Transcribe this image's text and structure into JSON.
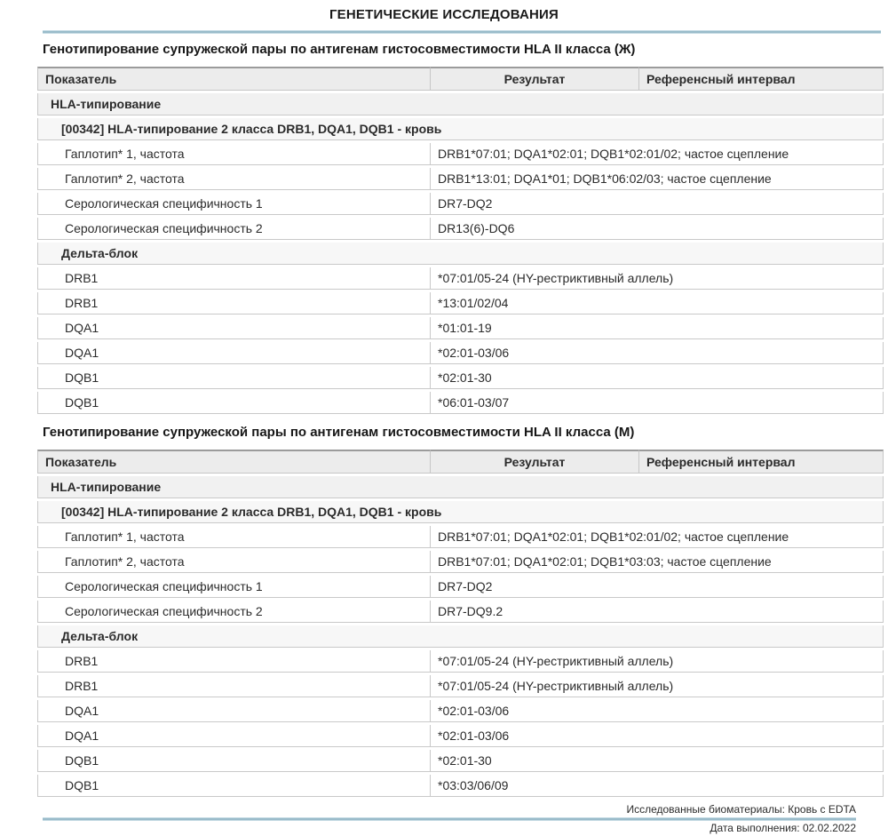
{
  "page": {
    "title": "ГЕНЕТИЧЕСКИЕ ИССЛЕДОВАНИЯ",
    "accent_color": "#7fa6b8",
    "footer": {
      "biomaterials": "Исследованные биоматериалы: Кровь с EDTA",
      "date": "Дата выполнения: 02.02.2022"
    }
  },
  "columns": [
    "Показатель",
    "Результат",
    "Референсный интервал"
  ],
  "sections": [
    {
      "heading": "Генотипирование супружеской пары по антигенам гистосовместимости HLA II класса (Ж)",
      "rows": [
        {
          "type": "group",
          "label": "HLA-типирование"
        },
        {
          "type": "subgroup",
          "label": "[00342] HLA-типирование 2 класса DRB1, DQA1, DQB1 - кровь"
        },
        {
          "type": "data",
          "label": "Гаплотип* 1, частота",
          "result": "DRB1*07:01; DQA1*02:01; DQB1*02:01/02; частое сцепление"
        },
        {
          "type": "data",
          "label": "Гаплотип* 2, частота",
          "result": "DRB1*13:01; DQA1*01; DQB1*06:02/03; частое сцепление"
        },
        {
          "type": "data",
          "label": "Серологическая специфичность 1",
          "result": "DR7-DQ2"
        },
        {
          "type": "data",
          "label": "Серологическая специфичность 2",
          "result": "DR13(6)-DQ6"
        },
        {
          "type": "subgroup",
          "label": "Дельта-блок"
        },
        {
          "type": "data",
          "label": "DRB1",
          "result": "*07:01/05-24 (HY-рестриктивный аллель)"
        },
        {
          "type": "data",
          "label": "DRB1",
          "result": "*13:01/02/04"
        },
        {
          "type": "data",
          "label": "DQA1",
          "result": "*01:01-19"
        },
        {
          "type": "data",
          "label": "DQA1",
          "result": "*02:01-03/06"
        },
        {
          "type": "data",
          "label": "DQB1",
          "result": "*02:01-30"
        },
        {
          "type": "data",
          "label": "DQB1",
          "result": "*06:01-03/07"
        }
      ]
    },
    {
      "heading": "Генотипирование супружеской пары по антигенам гистосовместимости HLA II класса (М)",
      "rows": [
        {
          "type": "group",
          "label": "HLA-типирование"
        },
        {
          "type": "subgroup",
          "label": "[00342] HLA-типирование 2 класса DRB1, DQA1, DQB1 - кровь"
        },
        {
          "type": "data",
          "label": "Гаплотип* 1, частота",
          "result": "DRB1*07:01; DQA1*02:01; DQB1*02:01/02; частое сцепление"
        },
        {
          "type": "data",
          "label": "Гаплотип* 2, частота",
          "result": "DRB1*07:01; DQA1*02:01; DQB1*03:03; частое сцепление"
        },
        {
          "type": "data",
          "label": "Серологическая специфичность 1",
          "result": "DR7-DQ2"
        },
        {
          "type": "data",
          "label": "Серологическая специфичность 2",
          "result": "DR7-DQ9.2"
        },
        {
          "type": "subgroup",
          "label": "Дельта-блок"
        },
        {
          "type": "data",
          "label": "DRB1",
          "result": "*07:01/05-24 (HY-рестриктивный аллель)"
        },
        {
          "type": "data",
          "label": "DRB1",
          "result": "*07:01/05-24 (HY-рестриктивный аллель)"
        },
        {
          "type": "data",
          "label": "DQA1",
          "result": "*02:01-03/06"
        },
        {
          "type": "data",
          "label": "DQA1",
          "result": "*02:01-03/06"
        },
        {
          "type": "data",
          "label": "DQB1",
          "result": "*02:01-30"
        },
        {
          "type": "data",
          "label": "DQB1",
          "result": "*03:03/06/09"
        }
      ]
    }
  ]
}
